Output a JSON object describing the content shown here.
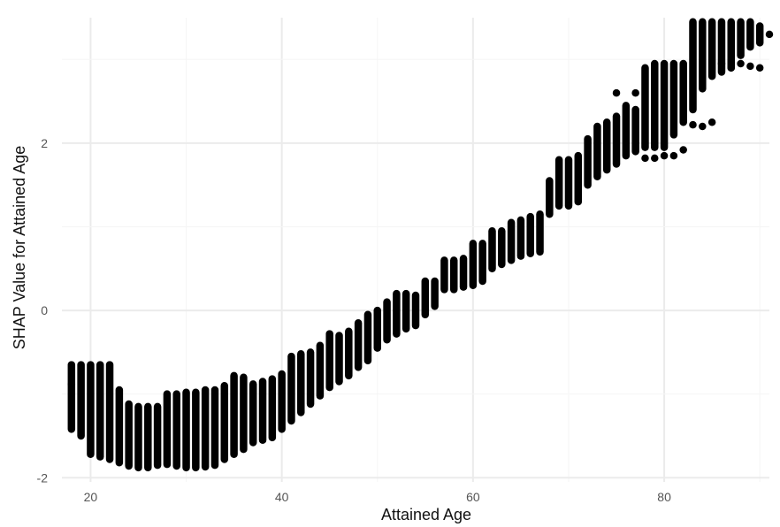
{
  "chart_data": {
    "type": "scatter",
    "title": "",
    "xlabel": "Attained Age",
    "ylabel": "SHAP Value for Attained Age",
    "xlim": [
      17,
      91
    ],
    "ylim": [
      -2.05,
      3.5
    ],
    "x_ticks": [
      20,
      40,
      60,
      80
    ],
    "y_ticks": [
      -2,
      0,
      2
    ],
    "x_tick_labels": [
      "20",
      "40",
      "60",
      "80"
    ],
    "y_tick_labels": [
      "-2",
      "0",
      "2"
    ],
    "grid": true,
    "legend": "none",
    "point_color": "#000000",
    "columns": [
      {
        "age": 18,
        "ymin": -1.42,
        "ymax": -0.65
      },
      {
        "age": 19,
        "ymin": -1.5,
        "ymax": -0.65
      },
      {
        "age": 20,
        "ymin": -1.72,
        "ymax": -0.65
      },
      {
        "age": 21,
        "ymin": -1.75,
        "ymax": -0.65
      },
      {
        "age": 22,
        "ymin": -1.78,
        "ymax": -0.65
      },
      {
        "age": 23,
        "ymin": -1.82,
        "ymax": -0.95
      },
      {
        "age": 24,
        "ymin": -1.86,
        "ymax": -1.12
      },
      {
        "age": 25,
        "ymin": -1.88,
        "ymax": -1.15
      },
      {
        "age": 26,
        "ymin": -1.88,
        "ymax": -1.15
      },
      {
        "age": 27,
        "ymin": -1.85,
        "ymax": -1.15
      },
      {
        "age": 28,
        "ymin": -1.84,
        "ymax": -1.0
      },
      {
        "age": 29,
        "ymin": -1.86,
        "ymax": -1.0
      },
      {
        "age": 30,
        "ymin": -1.88,
        "ymax": -0.98
      },
      {
        "age": 31,
        "ymin": -1.88,
        "ymax": -0.98
      },
      {
        "age": 32,
        "ymin": -1.87,
        "ymax": -0.95
      },
      {
        "age": 33,
        "ymin": -1.85,
        "ymax": -0.95
      },
      {
        "age": 34,
        "ymin": -1.78,
        "ymax": -0.9
      },
      {
        "age": 35,
        "ymin": -1.72,
        "ymax": -0.78
      },
      {
        "age": 36,
        "ymin": -1.66,
        "ymax": -0.8
      },
      {
        "age": 37,
        "ymin": -1.58,
        "ymax": -0.88
      },
      {
        "age": 38,
        "ymin": -1.55,
        "ymax": -0.85
      },
      {
        "age": 39,
        "ymin": -1.52,
        "ymax": -0.82
      },
      {
        "age": 40,
        "ymin": -1.42,
        "ymax": -0.76
      },
      {
        "age": 41,
        "ymin": -1.32,
        "ymax": -0.55
      },
      {
        "age": 42,
        "ymin": -1.22,
        "ymax": -0.52
      },
      {
        "age": 43,
        "ymin": -1.12,
        "ymax": -0.5
      },
      {
        "age": 44,
        "ymin": -1.02,
        "ymax": -0.42
      },
      {
        "age": 45,
        "ymin": -0.92,
        "ymax": -0.28
      },
      {
        "age": 46,
        "ymin": -0.85,
        "ymax": -0.3
      },
      {
        "age": 47,
        "ymin": -0.78,
        "ymax": -0.25
      },
      {
        "age": 48,
        "ymin": -0.68,
        "ymax": -0.15
      },
      {
        "age": 49,
        "ymin": -0.6,
        "ymax": -0.05
      },
      {
        "age": 50,
        "ymin": -0.45,
        "ymax": 0.0
      },
      {
        "age": 51,
        "ymin": -0.35,
        "ymax": 0.1
      },
      {
        "age": 52,
        "ymin": -0.28,
        "ymax": 0.2
      },
      {
        "age": 53,
        "ymin": -0.22,
        "ymax": 0.2
      },
      {
        "age": 54,
        "ymin": -0.18,
        "ymax": 0.18
      },
      {
        "age": 55,
        "ymin": -0.05,
        "ymax": 0.35
      },
      {
        "age": 56,
        "ymin": 0.05,
        "ymax": 0.35
      },
      {
        "age": 57,
        "ymin": 0.25,
        "ymax": 0.6
      },
      {
        "age": 58,
        "ymin": 0.25,
        "ymax": 0.6
      },
      {
        "age": 59,
        "ymin": 0.28,
        "ymax": 0.62
      },
      {
        "age": 60,
        "ymin": 0.3,
        "ymax": 0.8
      },
      {
        "age": 61,
        "ymin": 0.35,
        "ymax": 0.8
      },
      {
        "age": 62,
        "ymin": 0.5,
        "ymax": 0.95
      },
      {
        "age": 63,
        "ymin": 0.55,
        "ymax": 0.95
      },
      {
        "age": 64,
        "ymin": 0.6,
        "ymax": 1.05
      },
      {
        "age": 65,
        "ymin": 0.65,
        "ymax": 1.08
      },
      {
        "age": 66,
        "ymin": 0.68,
        "ymax": 1.12
      },
      {
        "age": 67,
        "ymin": 0.7,
        "ymax": 1.15
      },
      {
        "age": 68,
        "ymin": 1.15,
        "ymax": 1.55
      },
      {
        "age": 69,
        "ymin": 1.25,
        "ymax": 1.8
      },
      {
        "age": 70,
        "ymin": 1.25,
        "ymax": 1.8
      },
      {
        "age": 71,
        "ymin": 1.3,
        "ymax": 1.85
      },
      {
        "age": 72,
        "ymin": 1.5,
        "ymax": 2.05
      },
      {
        "age": 73,
        "ymin": 1.6,
        "ymax": 2.2
      },
      {
        "age": 74,
        "ymin": 1.68,
        "ymax": 2.25
      },
      {
        "age": 75,
        "ymin": 1.75,
        "ymax": 2.32
      },
      {
        "age": 76,
        "ymin": 1.85,
        "ymax": 2.45
      },
      {
        "age": 77,
        "ymin": 1.9,
        "ymax": 2.4
      },
      {
        "age": 78,
        "ymin": 1.95,
        "ymax": 2.9
      },
      {
        "age": 79,
        "ymin": 1.95,
        "ymax": 2.95
      },
      {
        "age": 80,
        "ymin": 1.95,
        "ymax": 2.95
      },
      {
        "age": 81,
        "ymin": 2.1,
        "ymax": 2.95
      },
      {
        "age": 82,
        "ymin": 2.25,
        "ymax": 2.95
      },
      {
        "age": 83,
        "ymin": 2.4,
        "ymax": 3.45
      },
      {
        "age": 84,
        "ymin": 2.65,
        "ymax": 3.45
      },
      {
        "age": 85,
        "ymin": 2.8,
        "ymax": 3.45
      },
      {
        "age": 86,
        "ymin": 2.85,
        "ymax": 3.45
      },
      {
        "age": 87,
        "ymin": 2.9,
        "ymax": 3.45
      },
      {
        "age": 88,
        "ymin": 3.05,
        "ymax": 3.45
      },
      {
        "age": 89,
        "ymin": 3.15,
        "ymax": 3.45
      },
      {
        "age": 90,
        "ymin": 3.2,
        "ymax": 3.4
      }
    ],
    "outliers": [
      {
        "age": 18,
        "y": -0.88
      },
      {
        "age": 75,
        "y": 2.6
      },
      {
        "age": 77,
        "y": 2.6
      },
      {
        "age": 78,
        "y": 1.82
      },
      {
        "age": 79,
        "y": 1.82
      },
      {
        "age": 80,
        "y": 1.85
      },
      {
        "age": 81,
        "y": 1.85
      },
      {
        "age": 82,
        "y": 1.92
      },
      {
        "age": 83,
        "y": 2.22
      },
      {
        "age": 84,
        "y": 2.2
      },
      {
        "age": 85,
        "y": 2.25
      },
      {
        "age": 86,
        "y": 2.95
      },
      {
        "age": 87,
        "y": 2.9
      },
      {
        "age": 88,
        "y": 2.95
      },
      {
        "age": 89,
        "y": 2.92
      },
      {
        "age": 90,
        "y": 2.9
      },
      {
        "age": 91,
        "y": 3.3
      }
    ]
  }
}
